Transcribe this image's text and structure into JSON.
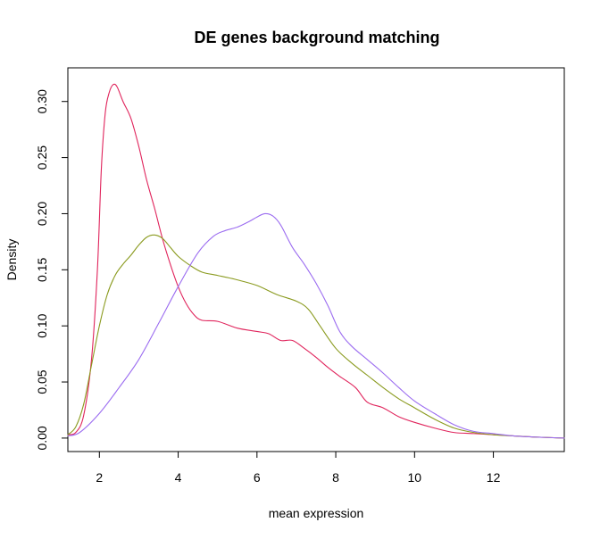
{
  "chart_data": {
    "type": "line",
    "title": "DE genes background matching",
    "xlabel": "mean expression",
    "ylabel": "Density",
    "xlim": [
      1.2,
      13.8
    ],
    "ylim": [
      -0.012,
      0.33
    ],
    "x_ticks": [
      2,
      4,
      6,
      8,
      10,
      12
    ],
    "x_tick_labels": [
      "2",
      "4",
      "6",
      "8",
      "10",
      "12"
    ],
    "y_ticks": [
      0.0,
      0.05,
      0.1,
      0.15,
      0.2,
      0.25,
      0.3
    ],
    "y_tick_labels": [
      "0.00",
      "0.05",
      "0.10",
      "0.15",
      "0.20",
      "0.25",
      "0.30"
    ],
    "grid": false,
    "legend": "none",
    "series": [
      {
        "color": "#e0245c",
        "x": [
          1.2,
          1.4,
          1.6,
          1.8,
          1.95,
          2.05,
          2.15,
          2.25,
          2.35,
          2.45,
          2.6,
          2.8,
          3.0,
          3.2,
          3.4,
          3.6,
          3.8,
          4.0,
          4.2,
          4.4,
          4.6,
          5.0,
          5.5,
          6.0,
          6.3,
          6.6,
          6.9,
          7.2,
          7.5,
          7.8,
          8.1,
          8.5,
          8.8,
          9.2,
          9.6,
          10.0,
          10.5,
          11.0,
          11.5,
          12.0,
          12.5,
          13.0,
          13.8
        ],
        "y": [
          0.003,
          0.005,
          0.02,
          0.07,
          0.15,
          0.24,
          0.29,
          0.308,
          0.315,
          0.313,
          0.3,
          0.285,
          0.26,
          0.23,
          0.205,
          0.178,
          0.155,
          0.135,
          0.12,
          0.11,
          0.105,
          0.104,
          0.098,
          0.095,
          0.093,
          0.087,
          0.087,
          0.08,
          0.072,
          0.063,
          0.055,
          0.045,
          0.032,
          0.027,
          0.019,
          0.014,
          0.009,
          0.005,
          0.004,
          0.003,
          0.002,
          0.001,
          0.0
        ]
      },
      {
        "color": "#8a9a1e",
        "x": [
          1.2,
          1.4,
          1.6,
          1.8,
          2.0,
          2.2,
          2.4,
          2.6,
          2.8,
          3.0,
          3.2,
          3.4,
          3.6,
          3.8,
          4.0,
          4.3,
          4.6,
          5.0,
          5.5,
          6.0,
          6.5,
          7.0,
          7.3,
          7.6,
          8.0,
          8.4,
          8.8,
          9.2,
          9.6,
          10.0,
          10.5,
          11.0,
          11.5,
          12.0,
          12.5,
          13.0,
          13.8
        ],
        "y": [
          0.003,
          0.01,
          0.03,
          0.065,
          0.1,
          0.128,
          0.145,
          0.155,
          0.163,
          0.172,
          0.179,
          0.181,
          0.178,
          0.17,
          0.162,
          0.154,
          0.148,
          0.145,
          0.141,
          0.136,
          0.128,
          0.122,
          0.115,
          0.1,
          0.08,
          0.067,
          0.056,
          0.045,
          0.035,
          0.027,
          0.017,
          0.009,
          0.005,
          0.003,
          0.002,
          0.001,
          0.0
        ]
      },
      {
        "color": "#9b6cf0",
        "x": [
          1.2,
          1.5,
          2.0,
          2.5,
          3.0,
          3.5,
          4.0,
          4.5,
          4.9,
          5.2,
          5.5,
          5.8,
          6.0,
          6.2,
          6.4,
          6.6,
          6.9,
          7.2,
          7.5,
          7.8,
          8.1,
          8.4,
          8.8,
          9.2,
          9.6,
          10.0,
          10.5,
          11.0,
          11.5,
          12.0,
          12.5,
          13.0,
          13.8
        ],
        "y": [
          0.002,
          0.005,
          0.022,
          0.045,
          0.07,
          0.102,
          0.135,
          0.165,
          0.18,
          0.185,
          0.188,
          0.193,
          0.197,
          0.2,
          0.198,
          0.19,
          0.17,
          0.155,
          0.138,
          0.118,
          0.095,
          0.082,
          0.07,
          0.058,
          0.045,
          0.033,
          0.022,
          0.012,
          0.006,
          0.004,
          0.002,
          0.001,
          0.0
        ]
      }
    ]
  }
}
